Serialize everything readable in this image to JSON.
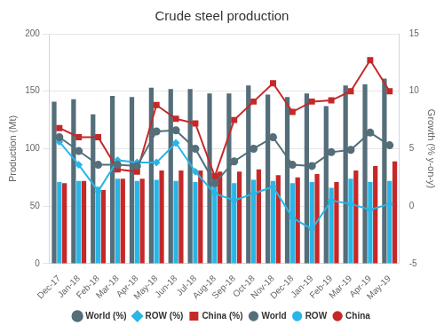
{
  "chart_data": {
    "type": "bar",
    "title": "Crude steel production",
    "y_label": "Production (Mt)",
    "y2_label": "Growth (% y-on-y)",
    "categories": [
      "Dec-17",
      "Jan-18",
      "Feb-18",
      "Mar-18",
      "Apr-18",
      "May-18",
      "Jun-18",
      "Jul-18",
      "Aug-18",
      "Sep-18",
      "Oct-18",
      "Nov-18",
      "Dec-18",
      "Jan-19",
      "Feb-19",
      "Mar-19",
      "Apr-19",
      "May-19"
    ],
    "ylim": [
      0,
      200
    ],
    "yticks": [
      0,
      50,
      100,
      150,
      200
    ],
    "y2lim": [
      -5,
      15
    ],
    "y2ticks": [
      -5,
      0,
      5,
      10,
      15
    ],
    "grid": true,
    "legend": "bottom",
    "series": [
      {
        "name": "World",
        "type": "bar",
        "color": "#546e7a",
        "values": [
          141,
          143,
          130,
          146,
          145,
          153,
          152,
          152,
          148,
          148,
          155,
          147,
          145,
          148,
          137,
          155,
          156,
          161
        ]
      },
      {
        "name": "ROW",
        "type": "bar",
        "color": "#29b6e6",
        "values": [
          71,
          72,
          67,
          74,
          72,
          73,
          72,
          71,
          71,
          70,
          73,
          72,
          70,
          71,
          66,
          74,
          71,
          72
        ]
      },
      {
        "name": "China",
        "type": "bar",
        "color": "#c62828",
        "values": [
          70,
          72,
          64,
          74,
          74,
          81,
          81,
          81,
          80,
          80,
          82,
          77,
          75,
          78,
          71,
          81,
          85,
          89
        ]
      },
      {
        "name": "World (%)",
        "type": "line",
        "axis": "y2",
        "color": "#546e7a",
        "marker": "circle",
        "values": [
          6.0,
          4.8,
          3.6,
          3.6,
          3.5,
          6.5,
          6.6,
          5.0,
          2.0,
          3.9,
          5.0,
          6.0,
          3.6,
          3.5,
          4.7,
          4.9,
          6.4,
          5.3
        ]
      },
      {
        "name": "ROW (%)",
        "type": "line",
        "axis": "y2",
        "color": "#29b6e6",
        "marker": "diamond",
        "values": [
          5.6,
          3.6,
          1.3,
          4.0,
          3.8,
          3.8,
          5.5,
          3.0,
          1.1,
          0.5,
          1.1,
          1.7,
          -1.0,
          -2.0,
          0.5,
          0.2,
          -0.3,
          0.2
        ]
      },
      {
        "name": "China (%)",
        "type": "line",
        "axis": "y2",
        "color": "#c62828",
        "marker": "square",
        "values": [
          6.8,
          6.0,
          6.0,
          3.2,
          3.0,
          8.8,
          7.6,
          7.2,
          2.6,
          7.5,
          9.1,
          10.7,
          8.2,
          9.1,
          9.2,
          10.0,
          12.7,
          10.0
        ]
      }
    ]
  }
}
